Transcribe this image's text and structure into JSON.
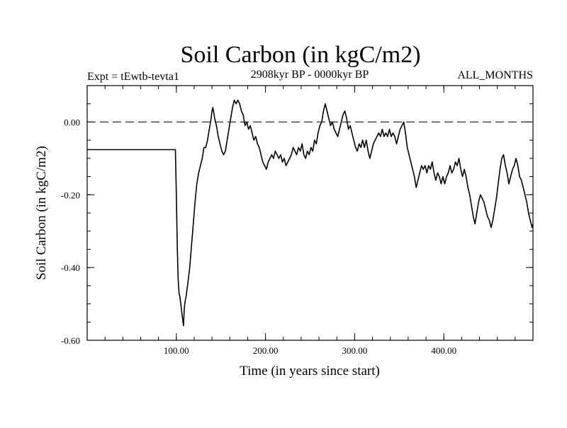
{
  "chart_data": {
    "type": "line",
    "title": "Soil Carbon (in kgC/m2)",
    "subtitle": "2908kyr BP - 0000kyr BP",
    "experiment": "Expt = tEwtb-tevta1",
    "months": "ALL_MONTHS",
    "xlabel": "Time (in years since start)",
    "ylabel": "Soil Carbon (in kgC/m2)",
    "xlim": [
      0,
      500
    ],
    "ylim": [
      -0.6,
      0.1
    ],
    "x_ticks": [
      {
        "value": 100,
        "label": "100.00"
      },
      {
        "value": 200,
        "label": "200.00"
      },
      {
        "value": 300,
        "label": "300.00"
      },
      {
        "value": 400,
        "label": "400.00"
      }
    ],
    "x_minor_step": 20,
    "y_ticks": [
      {
        "value": 0.0,
        "label": "0.00"
      },
      {
        "value": -0.2,
        "label": "-0.20"
      },
      {
        "value": -0.4,
        "label": "-0.40"
      },
      {
        "value": -0.6,
        "label": "-0.60"
      }
    ],
    "y_minor_step": 0.05,
    "reference_line": {
      "value": 0.0,
      "style": "dashed"
    },
    "series": [
      {
        "name": "Soil Carbon",
        "color": "#000000",
        "points": [
          [
            0,
            -0.076
          ],
          [
            99,
            -0.076
          ],
          [
            100,
            -0.2
          ],
          [
            101,
            -0.34
          ],
          [
            102,
            -0.43
          ],
          [
            103,
            -0.47
          ],
          [
            104,
            -0.48
          ],
          [
            105,
            -0.5
          ],
          [
            106,
            -0.52
          ],
          [
            107,
            -0.54
          ],
          [
            108,
            -0.56
          ],
          [
            109,
            -0.51
          ],
          [
            110,
            -0.49
          ],
          [
            111,
            -0.48
          ],
          [
            113,
            -0.44
          ],
          [
            115,
            -0.4
          ],
          [
            117,
            -0.34
          ],
          [
            119,
            -0.28
          ],
          [
            121,
            -0.22
          ],
          [
            123,
            -0.17
          ],
          [
            125,
            -0.14
          ],
          [
            127,
            -0.12
          ],
          [
            129,
            -0.1
          ],
          [
            131,
            -0.07
          ],
          [
            133,
            -0.07
          ],
          [
            135,
            -0.05
          ],
          [
            137,
            -0.02
          ],
          [
            139,
            0.01
          ],
          [
            140,
            0.03
          ],
          [
            141,
            0.04
          ],
          [
            143,
            0.01
          ],
          [
            145,
            -0.01
          ],
          [
            147,
            -0.04
          ],
          [
            149,
            -0.06
          ],
          [
            151,
            -0.08
          ],
          [
            153,
            -0.09
          ],
          [
            155,
            -0.08
          ],
          [
            157,
            -0.05
          ],
          [
            159,
            -0.02
          ],
          [
            161,
            0.01
          ],
          [
            163,
            0.04
          ],
          [
            165,
            0.06
          ],
          [
            167,
            0.05
          ],
          [
            169,
            0.06
          ],
          [
            171,
            0.05
          ],
          [
            173,
            0.03
          ],
          [
            175,
            0.02
          ],
          [
            177,
            -0.01
          ],
          [
            179,
            0.0
          ],
          [
            181,
            -0.02
          ],
          [
            183,
            -0.01
          ],
          [
            185,
            -0.03
          ],
          [
            187,
            -0.05
          ],
          [
            189,
            -0.04
          ],
          [
            191,
            -0.06
          ],
          [
            193,
            -0.07
          ],
          [
            195,
            -0.09
          ],
          [
            197,
            -0.11
          ],
          [
            199,
            -0.12
          ],
          [
            201,
            -0.13
          ],
          [
            203,
            -0.11
          ],
          [
            205,
            -0.1
          ],
          [
            207,
            -0.09
          ],
          [
            209,
            -0.1
          ],
          [
            211,
            -0.08
          ],
          [
            213,
            -0.09
          ],
          [
            215,
            -0.1
          ],
          [
            217,
            -0.09
          ],
          [
            219,
            -0.11
          ],
          [
            221,
            -0.1
          ],
          [
            223,
            -0.12
          ],
          [
            225,
            -0.11
          ],
          [
            227,
            -0.1
          ],
          [
            229,
            -0.09
          ],
          [
            231,
            -0.07
          ],
          [
            233,
            -0.08
          ],
          [
            235,
            -0.09
          ],
          [
            237,
            -0.07
          ],
          [
            239,
            -0.08
          ],
          [
            241,
            -0.06
          ],
          [
            243,
            -0.09
          ],
          [
            245,
            -0.1
          ],
          [
            247,
            -0.08
          ],
          [
            249,
            -0.09
          ],
          [
            251,
            -0.07
          ],
          [
            253,
            -0.08
          ],
          [
            255,
            -0.05
          ],
          [
            257,
            -0.06
          ],
          [
            259,
            -0.03
          ],
          [
            261,
            -0.01
          ],
          [
            263,
            0.0
          ],
          [
            265,
            0.03
          ],
          [
            267,
            0.05
          ],
          [
            269,
            0.03
          ],
          [
            271,
            0.01
          ],
          [
            273,
            -0.01
          ],
          [
            275,
            0.0
          ],
          [
            277,
            -0.02
          ],
          [
            279,
            -0.03
          ],
          [
            281,
            -0.04
          ],
          [
            283,
            -0.02
          ],
          [
            285,
            0.0
          ],
          [
            287,
            0.02
          ],
          [
            289,
            0.03
          ],
          [
            291,
            0.01
          ],
          [
            293,
            -0.02
          ],
          [
            295,
            -0.01
          ],
          [
            297,
            -0.03
          ],
          [
            299,
            -0.05
          ],
          [
            301,
            -0.07
          ],
          [
            303,
            -0.08
          ],
          [
            305,
            -0.06
          ],
          [
            307,
            -0.07
          ],
          [
            309,
            -0.05
          ],
          [
            311,
            -0.07
          ],
          [
            313,
            -0.05
          ],
          [
            315,
            -0.08
          ],
          [
            317,
            -0.1
          ],
          [
            319,
            -0.08
          ],
          [
            321,
            -0.06
          ],
          [
            323,
            -0.05
          ],
          [
            325,
            -0.04
          ],
          [
            327,
            -0.03
          ],
          [
            329,
            -0.04
          ],
          [
            331,
            -0.02
          ],
          [
            333,
            -0.04
          ],
          [
            335,
            -0.03
          ],
          [
            337,
            -0.04
          ],
          [
            339,
            -0.02
          ],
          [
            341,
            -0.04
          ],
          [
            343,
            -0.03
          ],
          [
            345,
            -0.04
          ],
          [
            347,
            -0.06
          ],
          [
            349,
            -0.04
          ],
          [
            351,
            -0.02
          ],
          [
            353,
            -0.01
          ],
          [
            355,
            0.0
          ],
          [
            357,
            -0.03
          ],
          [
            359,
            -0.07
          ],
          [
            361,
            -0.09
          ],
          [
            363,
            -0.11
          ],
          [
            365,
            -0.13
          ],
          [
            367,
            -0.15
          ],
          [
            369,
            -0.18
          ],
          [
            371,
            -0.16
          ],
          [
            373,
            -0.14
          ],
          [
            375,
            -0.12
          ],
          [
            377,
            -0.13
          ],
          [
            379,
            -0.12
          ],
          [
            381,
            -0.14
          ],
          [
            383,
            -0.12
          ],
          [
            385,
            -0.13
          ],
          [
            387,
            -0.11
          ],
          [
            389,
            -0.14
          ],
          [
            391,
            -0.16
          ],
          [
            393,
            -0.14
          ],
          [
            395,
            -0.15
          ],
          [
            397,
            -0.17
          ],
          [
            399,
            -0.15
          ],
          [
            401,
            -0.17
          ],
          [
            403,
            -0.15
          ],
          [
            405,
            -0.14
          ],
          [
            407,
            -0.12
          ],
          [
            409,
            -0.14
          ],
          [
            411,
            -0.13
          ],
          [
            413,
            -0.11
          ],
          [
            415,
            -0.12
          ],
          [
            417,
            -0.1
          ],
          [
            419,
            -0.13
          ],
          [
            421,
            -0.15
          ],
          [
            423,
            -0.13
          ],
          [
            425,
            -0.15
          ],
          [
            427,
            -0.18
          ],
          [
            429,
            -0.2
          ],
          [
            431,
            -0.23
          ],
          [
            433,
            -0.26
          ],
          [
            435,
            -0.28
          ],
          [
            437,
            -0.25
          ],
          [
            439,
            -0.22
          ],
          [
            441,
            -0.2
          ],
          [
            443,
            -0.21
          ],
          [
            445,
            -0.22
          ],
          [
            447,
            -0.24
          ],
          [
            449,
            -0.26
          ],
          [
            451,
            -0.27
          ],
          [
            453,
            -0.29
          ],
          [
            455,
            -0.27
          ],
          [
            457,
            -0.24
          ],
          [
            459,
            -0.21
          ],
          [
            461,
            -0.17
          ],
          [
            463,
            -0.13
          ],
          [
            465,
            -0.1
          ],
          [
            467,
            -0.09
          ],
          [
            469,
            -0.12
          ],
          [
            471,
            -0.14
          ],
          [
            473,
            -0.17
          ],
          [
            475,
            -0.15
          ],
          [
            477,
            -0.13
          ],
          [
            479,
            -0.12
          ],
          [
            481,
            -0.1
          ],
          [
            483,
            -0.12
          ],
          [
            485,
            -0.15
          ],
          [
            487,
            -0.16
          ],
          [
            489,
            -0.18
          ],
          [
            491,
            -0.2
          ],
          [
            493,
            -0.22
          ],
          [
            495,
            -0.25
          ],
          [
            497,
            -0.27
          ],
          [
            499,
            -0.29
          ],
          [
            500,
            -0.28
          ]
        ]
      }
    ]
  }
}
